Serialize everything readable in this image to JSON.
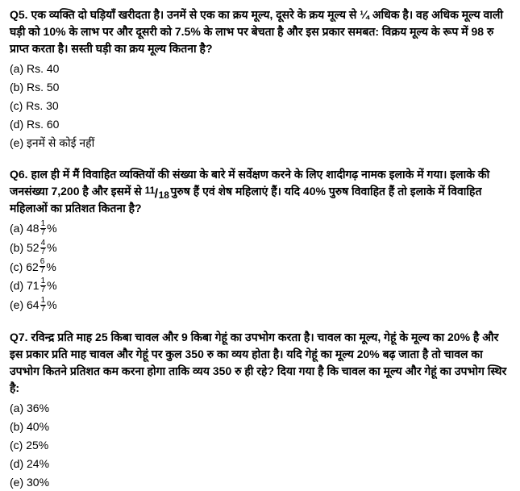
{
  "q5": {
    "label": "Q5.",
    "text": "एक व्यक्ति दो घड़ियाँ खरीदता है। उनमें से एक का क्रय मूल्य, दूसरे के क्रय मूल्य से ¼ अधिक है। वह अधिक मूल्य वाली घड़ी को 10% के लाभ पर और दूसरी को 7.5% के लाभ पर बेचता है और इस प्रकार समबत: विक्रय मूल्य के रूप में 98 रु प्राप्त करता है। सस्ती घड़ी का क्रय मूल्य कितना है?",
    "options": {
      "a": "(a) Rs. 40",
      "b": "(b) Rs. 50",
      "c": "(c) Rs. 30",
      "d": "(d) Rs. 60",
      "e": "(e) इनमें से कोई नहीं"
    }
  },
  "q6": {
    "label": "Q6.",
    "text1": "हाल ही में मैं विवाहित व्यक्तियों की संख्या के बारे में सर्वेक्षण करने के लिए शादीगढ़ नामक इलाके में गया। इलाके की जनसंख्या 7,200 है और इसमें से ",
    "frac_num": "11",
    "frac_den": "18",
    "text2": " पुरुष हैं एवं शेष महिलाएं हैं। यदि 40% पुरुष विवाहित हैं तो इलाके में विवाहित महिलाओं का प्रतिशत कितना है?",
    "options": {
      "a_pre": "(a) 48",
      "a_num": "1",
      "a_den": "7",
      "a_post": "%",
      "b_pre": "(b) 52",
      "b_num": "4",
      "b_den": "7",
      "b_post": "%",
      "c_pre": "(c) 62",
      "c_num": "6",
      "c_den": "7",
      "c_post": "%",
      "d_pre": "(d) 71",
      "d_num": "1",
      "d_den": "7",
      "d_post": "%",
      "e_pre": "(e) 64",
      "e_num": "1",
      "e_den": "7",
      "e_post": "%"
    }
  },
  "q7": {
    "label": "Q7.",
    "text": "रविन्द्र प्रति माह 25 किबा चावल और 9 किबा गेहूं का उपभोग करता है। चावल का मूल्य, गेहूं के मूल्य का 20% है और इस प्रकार प्रति माह चावल और गेहूं पर कुल 350 रु का व्यय होता है। यदि गेहूं का मूल्य 20% बढ़ जाता है तो चावल का उपभोग कितने प्रतिशत कम करना होगा ताकि व्यय 350 रु ही रहे? दिया गया है कि चावल का मूल्य और गेहूं का उपभोग स्थिर है:",
    "options": {
      "a": "(a) 36%",
      "b": "(b) 40%",
      "c": "(c) 25%",
      "d": "(d) 24%",
      "e": "(e) 30%"
    }
  }
}
